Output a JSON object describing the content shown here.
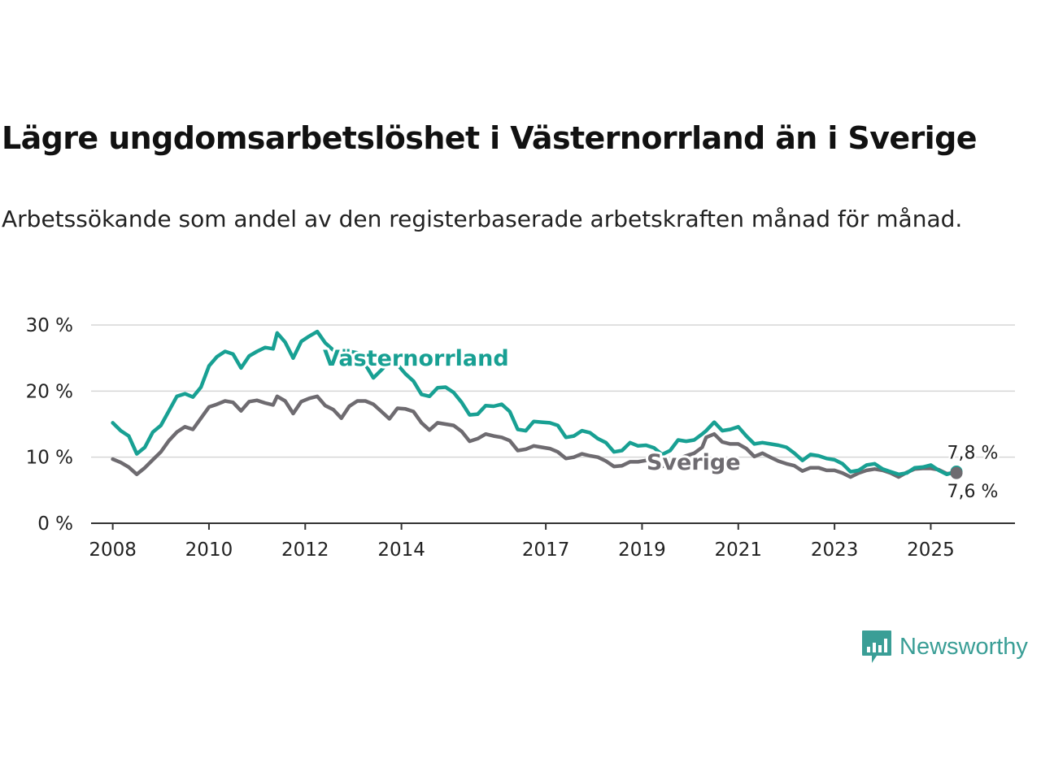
{
  "chart_data": {
    "type": "line",
    "title": "Lägre ungdomsarbetslöshet i Västernorrland än i Sverige",
    "subtitle": "Arbetssökande som andel av den registerbaserade arbetskraften månad för månad.",
    "xlabel": "",
    "ylabel": "",
    "x_ticks": [
      "2008",
      "2010",
      "2012",
      "2014",
      "2017",
      "2019",
      "2021",
      "2023",
      "2025"
    ],
    "y_ticks": [
      "0 %",
      "10 %",
      "20 %",
      "30 %"
    ],
    "ylim": [
      0,
      30
    ],
    "grid": true,
    "legend": "direct labels",
    "series": [
      {
        "name": "Västernorrland",
        "color": "#18a093",
        "end_label": "7,8 %",
        "points": [
          [
            "2008-01",
            15.2
          ],
          [
            "2008-03",
            14.0
          ],
          [
            "2008-05",
            13.2
          ],
          [
            "2008-07",
            10.5
          ],
          [
            "2008-09",
            11.5
          ],
          [
            "2008-11",
            13.8
          ],
          [
            "2009-01",
            14.8
          ],
          [
            "2009-03",
            17.0
          ],
          [
            "2009-05",
            19.2
          ],
          [
            "2009-07",
            19.6
          ],
          [
            "2009-09",
            19.1
          ],
          [
            "2009-11",
            20.6
          ],
          [
            "2010-01",
            23.8
          ],
          [
            "2010-03",
            25.2
          ],
          [
            "2010-05",
            26.0
          ],
          [
            "2010-07",
            25.6
          ],
          [
            "2010-09",
            23.5
          ],
          [
            "2010-11",
            25.3
          ],
          [
            "2011-01",
            26.0
          ],
          [
            "2011-03",
            26.6
          ],
          [
            "2011-05",
            26.4
          ],
          [
            "2011-06",
            28.8
          ],
          [
            "2011-08",
            27.4
          ],
          [
            "2011-10",
            25.0
          ],
          [
            "2011-12",
            27.5
          ],
          [
            "2012-02",
            28.3
          ],
          [
            "2012-04",
            29.0
          ],
          [
            "2012-06",
            27.3
          ],
          [
            "2012-08",
            26.2
          ],
          [
            "2012-10",
            24.8
          ],
          [
            "2012-12",
            26.0
          ],
          [
            "2013-02",
            25.8
          ],
          [
            "2013-04",
            24.0
          ],
          [
            "2013-06",
            22.0
          ],
          [
            "2013-08",
            23.2
          ],
          [
            "2013-10",
            24.5
          ],
          [
            "2013-12",
            24.0
          ],
          [
            "2014-02",
            22.6
          ],
          [
            "2014-04",
            21.5
          ],
          [
            "2014-06",
            19.5
          ],
          [
            "2014-08",
            19.2
          ],
          [
            "2014-10",
            20.5
          ],
          [
            "2014-12",
            20.6
          ],
          [
            "2015-02",
            19.8
          ],
          [
            "2015-04",
            18.3
          ],
          [
            "2015-06",
            16.4
          ],
          [
            "2015-08",
            16.5
          ],
          [
            "2015-10",
            17.8
          ],
          [
            "2015-12",
            17.7
          ],
          [
            "2016-02",
            18.0
          ],
          [
            "2016-04",
            16.9
          ],
          [
            "2016-06",
            14.2
          ],
          [
            "2016-08",
            14.0
          ],
          [
            "2016-10",
            15.4
          ],
          [
            "2016-12",
            15.3
          ],
          [
            "2017-02",
            15.2
          ],
          [
            "2017-04",
            14.8
          ],
          [
            "2017-06",
            13.0
          ],
          [
            "2017-08",
            13.2
          ],
          [
            "2017-10",
            14.0
          ],
          [
            "2017-12",
            13.7
          ],
          [
            "2018-02",
            12.8
          ],
          [
            "2018-04",
            12.2
          ],
          [
            "2018-06",
            10.8
          ],
          [
            "2018-08",
            11.0
          ],
          [
            "2018-10",
            12.2
          ],
          [
            "2018-12",
            11.7
          ],
          [
            "2019-02",
            11.8
          ],
          [
            "2019-04",
            11.4
          ],
          [
            "2019-06",
            10.4
          ],
          [
            "2019-08",
            11.0
          ],
          [
            "2019-10",
            12.6
          ],
          [
            "2019-12",
            12.4
          ],
          [
            "2020-02",
            12.6
          ],
          [
            "2020-04",
            13.5
          ],
          [
            "2020-05",
            14.0
          ],
          [
            "2020-07",
            15.3
          ],
          [
            "2020-09",
            14.0
          ],
          [
            "2020-11",
            14.2
          ],
          [
            "2021-01",
            14.6
          ],
          [
            "2021-03",
            13.2
          ],
          [
            "2021-05",
            12.0
          ],
          [
            "2021-07",
            12.2
          ],
          [
            "2021-09",
            12.0
          ],
          [
            "2021-11",
            11.8
          ],
          [
            "2022-01",
            11.5
          ],
          [
            "2022-03",
            10.6
          ],
          [
            "2022-05",
            9.5
          ],
          [
            "2022-07",
            10.4
          ],
          [
            "2022-09",
            10.2
          ],
          [
            "2022-11",
            9.8
          ],
          [
            "2023-01",
            9.6
          ],
          [
            "2023-03",
            9.0
          ],
          [
            "2023-05",
            7.8
          ],
          [
            "2023-07",
            8.0
          ],
          [
            "2023-09",
            8.8
          ],
          [
            "2023-11",
            9.0
          ],
          [
            "2024-01",
            8.2
          ],
          [
            "2024-03",
            7.8
          ],
          [
            "2024-05",
            7.4
          ],
          [
            "2024-07",
            7.6
          ],
          [
            "2024-09",
            8.4
          ],
          [
            "2024-11",
            8.5
          ],
          [
            "2025-01",
            8.8
          ],
          [
            "2025-03",
            8.0
          ],
          [
            "2025-05",
            7.4
          ],
          [
            "2025-07",
            7.8
          ]
        ]
      },
      {
        "name": "Sverige",
        "color": "#6e6b70",
        "end_label": "7,6 %",
        "points": [
          [
            "2008-01",
            9.7
          ],
          [
            "2008-03",
            9.2
          ],
          [
            "2008-05",
            8.5
          ],
          [
            "2008-07",
            7.4
          ],
          [
            "2008-09",
            8.4
          ],
          [
            "2008-11",
            9.6
          ],
          [
            "2009-01",
            10.8
          ],
          [
            "2009-03",
            12.5
          ],
          [
            "2009-05",
            13.8
          ],
          [
            "2009-07",
            14.6
          ],
          [
            "2009-09",
            14.2
          ],
          [
            "2009-11",
            15.9
          ],
          [
            "2010-01",
            17.6
          ],
          [
            "2010-03",
            18.0
          ],
          [
            "2010-05",
            18.5
          ],
          [
            "2010-07",
            18.3
          ],
          [
            "2010-09",
            17.0
          ],
          [
            "2010-11",
            18.4
          ],
          [
            "2011-01",
            18.6
          ],
          [
            "2011-03",
            18.2
          ],
          [
            "2011-05",
            17.9
          ],
          [
            "2011-06",
            19.2
          ],
          [
            "2011-08",
            18.5
          ],
          [
            "2011-10",
            16.6
          ],
          [
            "2011-12",
            18.4
          ],
          [
            "2012-02",
            18.9
          ],
          [
            "2012-04",
            19.2
          ],
          [
            "2012-06",
            17.8
          ],
          [
            "2012-08",
            17.2
          ],
          [
            "2012-10",
            15.9
          ],
          [
            "2012-12",
            17.7
          ],
          [
            "2013-02",
            18.5
          ],
          [
            "2013-04",
            18.5
          ],
          [
            "2013-06",
            18.0
          ],
          [
            "2013-08",
            16.9
          ],
          [
            "2013-10",
            15.8
          ],
          [
            "2013-12",
            17.4
          ],
          [
            "2014-02",
            17.3
          ],
          [
            "2014-04",
            16.9
          ],
          [
            "2014-06",
            15.2
          ],
          [
            "2014-08",
            14.1
          ],
          [
            "2014-10",
            15.2
          ],
          [
            "2014-12",
            15.0
          ],
          [
            "2015-02",
            14.8
          ],
          [
            "2015-04",
            13.9
          ],
          [
            "2015-06",
            12.4
          ],
          [
            "2015-08",
            12.8
          ],
          [
            "2015-10",
            13.5
          ],
          [
            "2015-12",
            13.2
          ],
          [
            "2016-02",
            13.0
          ],
          [
            "2016-04",
            12.5
          ],
          [
            "2016-06",
            11.0
          ],
          [
            "2016-08",
            11.2
          ],
          [
            "2016-10",
            11.7
          ],
          [
            "2016-12",
            11.5
          ],
          [
            "2017-02",
            11.3
          ],
          [
            "2017-04",
            10.8
          ],
          [
            "2017-06",
            9.8
          ],
          [
            "2017-08",
            10.0
          ],
          [
            "2017-10",
            10.5
          ],
          [
            "2017-12",
            10.2
          ],
          [
            "2018-02",
            10.0
          ],
          [
            "2018-04",
            9.4
          ],
          [
            "2018-06",
            8.6
          ],
          [
            "2018-08",
            8.7
          ],
          [
            "2018-10",
            9.3
          ],
          [
            "2018-12",
            9.3
          ],
          [
            "2019-02",
            9.5
          ],
          [
            "2019-04",
            9.5
          ],
          [
            "2019-06",
            8.6
          ],
          [
            "2019-08",
            9.0
          ],
          [
            "2019-10",
            9.7
          ],
          [
            "2019-12",
            10.2
          ],
          [
            "2020-02",
            10.6
          ],
          [
            "2020-04",
            11.5
          ],
          [
            "2020-05",
            13.0
          ],
          [
            "2020-07",
            13.5
          ],
          [
            "2020-09",
            12.3
          ],
          [
            "2020-11",
            12.0
          ],
          [
            "2021-01",
            12.0
          ],
          [
            "2021-03",
            11.3
          ],
          [
            "2021-05",
            10.1
          ],
          [
            "2021-07",
            10.6
          ],
          [
            "2021-09",
            10.0
          ],
          [
            "2021-11",
            9.4
          ],
          [
            "2022-01",
            9.0
          ],
          [
            "2022-03",
            8.7
          ],
          [
            "2022-05",
            7.9
          ],
          [
            "2022-07",
            8.4
          ],
          [
            "2022-09",
            8.4
          ],
          [
            "2022-11",
            8.0
          ],
          [
            "2023-01",
            8.0
          ],
          [
            "2023-03",
            7.6
          ],
          [
            "2023-05",
            7.0
          ],
          [
            "2023-07",
            7.6
          ],
          [
            "2023-09",
            8.0
          ],
          [
            "2023-11",
            8.2
          ],
          [
            "2024-01",
            8.0
          ],
          [
            "2024-03",
            7.6
          ],
          [
            "2024-05",
            7.0
          ],
          [
            "2024-07",
            7.7
          ],
          [
            "2024-09",
            8.2
          ],
          [
            "2024-11",
            8.3
          ],
          [
            "2025-01",
            8.3
          ],
          [
            "2025-03",
            8.1
          ],
          [
            "2025-05",
            7.5
          ],
          [
            "2025-07",
            7.6
          ]
        ]
      }
    ]
  },
  "logo": {
    "text": "Newsworthy",
    "icon": "newsworthy-chart-icon",
    "color": "#3a9e96"
  }
}
